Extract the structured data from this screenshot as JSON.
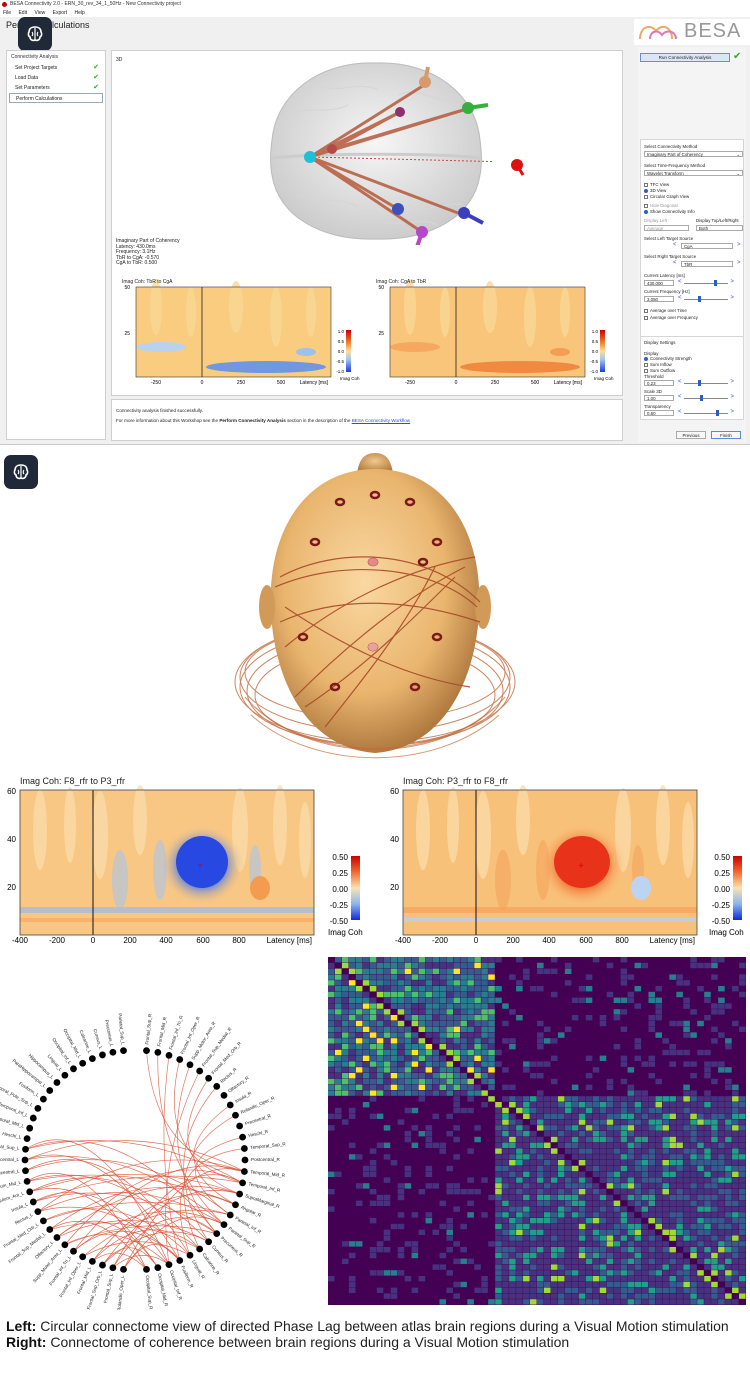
{
  "app": {
    "title": "BESA Connectivity 2.0 - ERN_30_rev_34_1_50Hz - New Connectivity project",
    "menu": [
      "File",
      "Edit",
      "View",
      "Export",
      "Help"
    ],
    "page_title": "Perform Calculations",
    "logo_text": "BESA",
    "left_panel": {
      "header": "Connectivity Analysis",
      "steps": [
        {
          "label": "Set Project Targets",
          "done": true
        },
        {
          "label": "Load Data",
          "done": true
        },
        {
          "label": "Set Parameters",
          "done": true
        },
        {
          "label": "Perform Calculations",
          "done": false
        }
      ]
    },
    "view3d": {
      "label": "3D",
      "info": [
        "Imaginary Part of Coherency",
        "Latency: 430.0ms",
        "Frequency: 3.1Hz",
        "TbR to CgA: -0.570",
        "CgA to TbR: 0.500"
      ]
    },
    "coh_plots": [
      {
        "title": "Imag Coh: TbR to CgA",
        "y_ticks": [
          "50",
          "25"
        ],
        "x_ticks": [
          "-250",
          "0",
          "250",
          "500"
        ],
        "x_label": "Latency [ms]",
        "cbar_ticks": [
          "1.0",
          "0.5",
          "0.0",
          "-0.5",
          "-1.0"
        ],
        "cbar_label": "Imag Coh"
      },
      {
        "title": "Imag Coh: CgA to TbR",
        "y_ticks": [
          "50",
          "25"
        ],
        "x_ticks": [
          "-250",
          "0",
          "250",
          "500"
        ],
        "x_label": "Latency [ms]",
        "cbar_ticks": [
          "1.0",
          "0.5",
          "0.0",
          "-0.5",
          "-1.0"
        ],
        "cbar_label": "Imag Coh"
      }
    ],
    "status": {
      "line1": "Connectivity analysis finished successfully.",
      "line2_pre": "For more information about this Workshop see the ",
      "line2_bold": "Perform Connectivity Analysis",
      "line2_mid": " section in the description of the ",
      "line2_link": "BESA Connectivity Workflow"
    },
    "right_panel": {
      "run_button": "Run Connectivity Analysis",
      "method_label": "Select Connectivity Method",
      "method_value": "Imaginary Part of Coherency",
      "tf_label": "Select Time-Frequency Method",
      "tf_value": "Wavelet Transform",
      "views": [
        {
          "label": "TFC View",
          "on": false
        },
        {
          "label": "3D View",
          "on": true
        },
        {
          "label": "Circular Graph View",
          "on": false
        }
      ],
      "hide_diagonal": "Hide Diagonal",
      "show_info": "Show Connectivity Info",
      "display_left_label": "Display Left",
      "display_left_value": "Average",
      "display_right_label": "Display Top/Left/Right",
      "display_right_value": "Both",
      "left_target_label": "Select Left Target Source",
      "left_target_value": "CgA",
      "right_target_label": "Select Right Target Source",
      "right_target_value": "TbR",
      "latency_label": "Current Latency [ms]",
      "latency_value": "430.000",
      "latency_pos": 0.72,
      "freq_label": "Current Frequency [Hz]",
      "freq_value": "3.050",
      "freq_pos": 0.35,
      "avg_time": "Average over Time",
      "avg_freq": "Average over Frequency",
      "display_settings": "Display Settings",
      "display_label": "Display",
      "display_options": [
        {
          "label": "Connectivity Strength",
          "on": true
        },
        {
          "label": "Sum Inflow",
          "on": false
        },
        {
          "label": "Sum Outflow",
          "on": false
        }
      ],
      "threshold_label": "Threshold",
      "threshold_value": "0.23",
      "threshold_pos": 0.35,
      "scale_label": "Scale 3D",
      "scale_value": "1.00",
      "scale_pos": 0.4,
      "transparency_label": "Transparency",
      "transparency_value": "0.60",
      "transparency_pos": 0.78,
      "previous": "Previous",
      "finish": "Finish"
    }
  },
  "tf_plots": [
    {
      "title": "Imag Coh: F8_rfr to P3_rfr",
      "y_ticks": [
        "60",
        "40",
        "20"
      ],
      "x_ticks": [
        "-400",
        "-200",
        "0",
        "200",
        "400",
        "600",
        "800"
      ],
      "x_label": "Latency [ms]",
      "cbar_ticks": [
        "0.50",
        "0.25",
        "0.00",
        "-0.25",
        "-0.50"
      ],
      "cbar_label": "Imag Coh",
      "blob": "blue"
    },
    {
      "title": "Imag Coh: P3_rfr to F8_rfr",
      "y_ticks": [
        "60",
        "40",
        "20"
      ],
      "x_ticks": [
        "-400",
        "-200",
        "0",
        "200",
        "400",
        "600",
        "800"
      ],
      "x_label": "Latency [ms]",
      "cbar_ticks": [
        "0.50",
        "0.25",
        "0.00",
        "-0.25",
        "-0.50"
      ],
      "cbar_label": "Imag Coh",
      "blob": "red"
    }
  ],
  "regions_left": [
    "Rolandic_Oper_L",
    "Frontal_Sup_L",
    "Frontal_Sup_Orb_L",
    "Frontal_Mid_L",
    "Frontal_Inf_Oper_L",
    "Frontal_Inf_Tri_L",
    "Supp_Motor_Area_L",
    "Olfactory_L",
    "Frontal_Sup_Medial_L",
    "Frontal_Med_Orb_L",
    "Rectus_L",
    "Insula_L",
    "Cingulum_Ant_L",
    "Cingulum_Mid_L",
    "Precentral_L",
    "Postcentral_L",
    "Temporal_Sup_L",
    "Heschl_L",
    "Temporal_Mid_L",
    "Temporal_Inf_L",
    "Temporal_Pole_Sup_L",
    "Fusiform_L",
    "ParaHippocampal_L",
    "Hippocampus_L",
    "Lingual_L",
    "Occipital_Inf_L",
    "Occipital_Mid_L",
    "Calcarine_L",
    "Cuneus_L",
    "Precuneus_L",
    "Parietal_Sup_L"
  ],
  "regions_right": [
    "Frontal_Sup_R",
    "Frontal_Mid_R",
    "Frontal_Inf_Tri_R",
    "Frontal_Inf_Oper_R",
    "Supp_Motor_Area_R",
    "Frontal_Sup_Medial_R",
    "Frontal_Med_Orb_R",
    "Rectus_R",
    "Olfactory_R",
    "Insula_R",
    "Rolandic_Oper_R",
    "Precentral_R",
    "Heschl_R",
    "Temporal_Sup_R",
    "Postcentral_R",
    "Temporal_Mid_R",
    "Temporal_Inf_R",
    "SupraMarginal_R",
    "Angular_R",
    "Parietal_Inf_R",
    "Parietal_Sup_R",
    "Precuneus_R",
    "Cuneus_R",
    "Calcarine_R",
    "Lingual_R",
    "Fusiform_R",
    "Occipital_Inf_R",
    "Occipital_Mid_R",
    "Occipital_Sup_R"
  ],
  "caption": {
    "left_bold": "Left:",
    "left_text": " Circular connectome view of directed Phase Lag between atlas brain regions during a Visual Motion stimulation ",
    "right_bold": "Right:",
    "right_text": " Connectome of coherence between brain regions during a Visual Motion stimulation"
  },
  "colors": {
    "accent": "#2b5fc7",
    "head": "#e9b56e",
    "connection": "#c8552a",
    "matrix_low": "#440154",
    "matrix_high": "#fde725"
  }
}
